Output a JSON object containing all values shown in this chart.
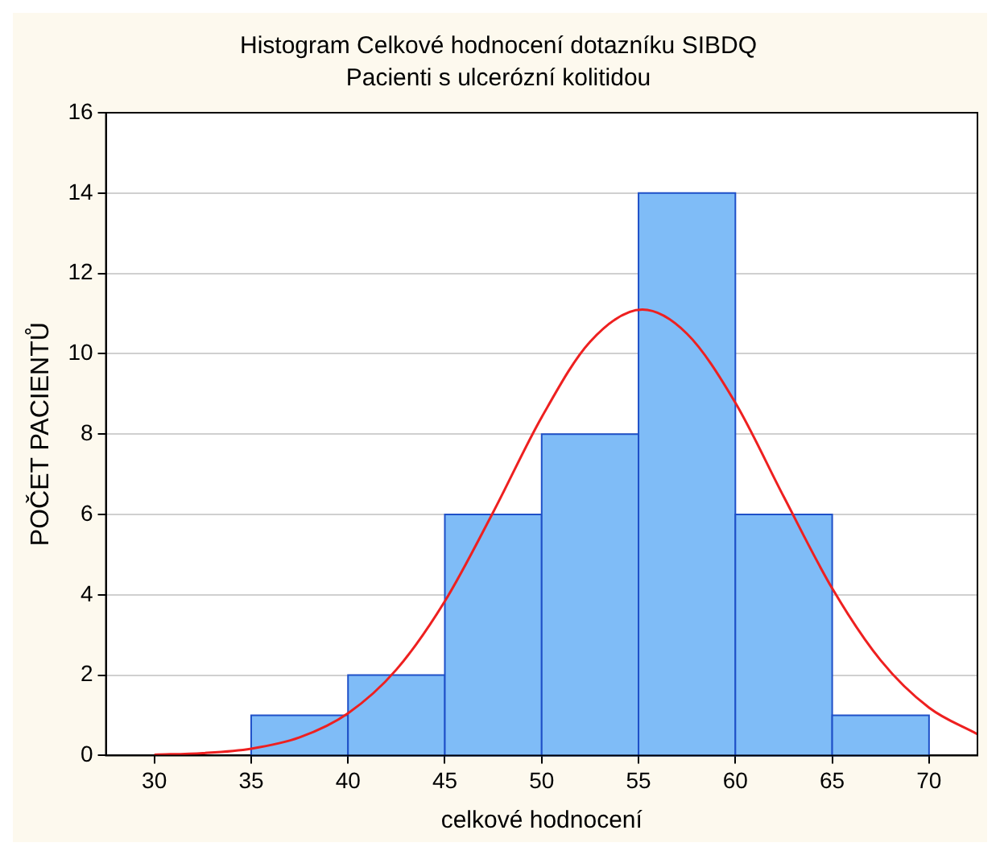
{
  "chart_data": {
    "type": "histogram",
    "title": "Histogram Celkové hodnocení dotazníku SIBDQ",
    "subtitle": "Pacienti s ulcerózní kolitidou",
    "xlabel": "celkové hodnocení",
    "ylabel": "POČET PACIENTŮ",
    "bins": [
      35,
      40,
      45,
      50,
      55,
      60,
      65,
      70
    ],
    "values": [
      1,
      2,
      6,
      8,
      14,
      6,
      1
    ],
    "color": "#7fbcf7",
    "series": [
      {
        "type": "line",
        "color": "#ee2020",
        "x": [
          30,
          32.5,
          35,
          37.5,
          40,
          42.5,
          45,
          47.5,
          50,
          52.5,
          55.2,
          57.5,
          60,
          62.5,
          65,
          67.5,
          70,
          72.5
        ],
        "values": [
          0.02,
          0.06,
          0.17,
          0.45,
          1.05,
          2.14,
          3.84,
          6.06,
          8.42,
          10.3,
          11.1,
          10.5,
          8.78,
          6.44,
          4.16,
          2.37,
          1.19,
          0.53
        ]
      }
    ],
    "xlim": [
      27.5,
      72.5
    ],
    "xticks": [
      30,
      35,
      40,
      45,
      50,
      55,
      60,
      65,
      70
    ],
    "ylim": [
      0,
      16
    ],
    "yticks": [
      0,
      2,
      4,
      6,
      8,
      10,
      12,
      14,
      16
    ],
    "grid": "y",
    "marker": "none",
    "line_style": "solid"
  }
}
